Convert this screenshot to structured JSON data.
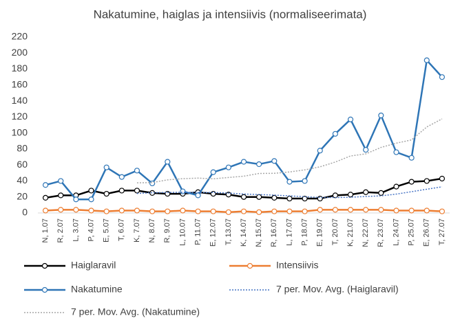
{
  "chart_data": {
    "type": "line",
    "title": "Nakatumine, haiglas ja intensiivis (normaliseerimata)",
    "categories": [
      "N, 1.07",
      "R, 2.07",
      "L, 3.07",
      "P, 4.07",
      "E, 5.07",
      "T, 6.07",
      "K, 7.07",
      "N, 8.07",
      "R, 9.07",
      "L, 10.07",
      "P, 11.07",
      "E, 12.07",
      "T, 13.07",
      "K, 14.07",
      "N, 15.07",
      "R, 16.07",
      "L, 17.07",
      "P, 18.07",
      "E, 19.07",
      "T, 20.07",
      "K, 21.07",
      "N, 22.07",
      "R, 23.07",
      "L, 24.07",
      "P, 25.07",
      "E, 26.07",
      "T, 27.07"
    ],
    "series": [
      {
        "name": "Haiglaravil",
        "color": "#000000",
        "marker": true,
        "dash": "solid",
        "values": [
          19,
          22,
          22,
          28,
          24,
          28,
          28,
          25,
          24,
          24,
          26,
          24,
          23,
          20,
          20,
          19,
          18,
          18,
          18,
          22,
          23,
          26,
          25,
          33,
          39,
          40,
          43
        ]
      },
      {
        "name": "Intensiivis",
        "color": "#ed7d31",
        "marker": true,
        "dash": "solid",
        "values": [
          3,
          4,
          4,
          3,
          2,
          3,
          3,
          2,
          2,
          3,
          2,
          2,
          1,
          2,
          1,
          2,
          2,
          2,
          4,
          4,
          4,
          4,
          4,
          3,
          3,
          3,
          2
        ]
      },
      {
        "name": "Nakatumine",
        "color": "#2e75b6",
        "marker": true,
        "dash": "solid",
        "values": [
          35,
          40,
          17,
          17,
          57,
          45,
          53,
          37,
          64,
          27,
          22,
          51,
          57,
          64,
          61,
          65,
          39,
          40,
          78,
          99,
          117,
          79,
          122,
          76,
          69,
          191,
          170
        ]
      },
      {
        "name": "7 per. Mov. Avg. (Haiglaravil)",
        "color": "#4472c4",
        "marker": false,
        "dash": "dotted",
        "values": [
          null,
          null,
          null,
          null,
          null,
          null,
          24.4,
          25.3,
          25.6,
          25.9,
          25.6,
          25.6,
          24.9,
          23.7,
          23,
          22.3,
          21.4,
          20.3,
          19.4,
          19.3,
          19.7,
          20.6,
          21.4,
          23.6,
          26.6,
          29.7,
          32.7
        ]
      },
      {
        "name": "7 per. Mov. Avg. (Nakatumine)",
        "color": "#a6a6a6",
        "marker": false,
        "dash": "dotted",
        "values": [
          null,
          null,
          null,
          null,
          null,
          null,
          37.7,
          38,
          41.4,
          42.9,
          43.6,
          42.7,
          44.4,
          46,
          49.4,
          49.6,
          51.3,
          53.9,
          57.7,
          63.7,
          71.3,
          73.9,
          82,
          87.3,
          91.4,
          107.6,
          117.7
        ]
      }
    ],
    "ylim": [
      0,
      220
    ],
    "yticks": [
      0,
      20,
      40,
      60,
      80,
      100,
      120,
      140,
      160,
      180,
      200,
      220
    ],
    "grid": false
  }
}
